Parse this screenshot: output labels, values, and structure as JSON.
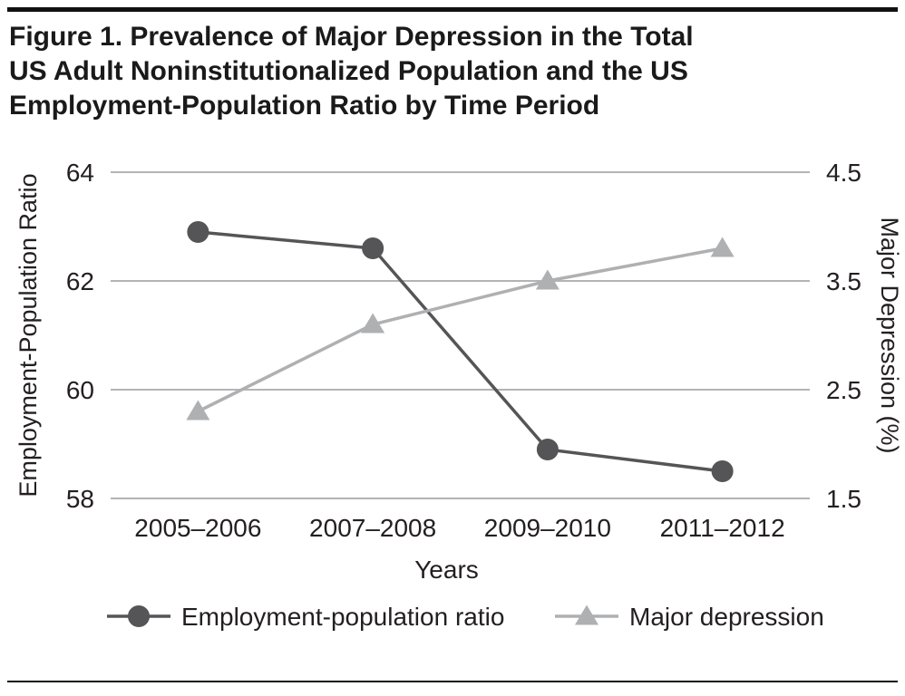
{
  "title": {
    "lines": [
      "Figure 1. Prevalence of Major Depression in the Total",
      "US Adult Noninstitutionalized Population and the US",
      "Employment-Population Ratio by Time Period"
    ]
  },
  "chart_data": {
    "type": "line",
    "categories": [
      "2005–2006",
      "2007–2008",
      "2009–2010",
      "2011–2012"
    ],
    "series": [
      {
        "name": "Employment-population ratio",
        "axis": "left",
        "marker": "circle",
        "color": "#555557",
        "values": [
          62.9,
          62.6,
          58.9,
          58.5
        ]
      },
      {
        "name": "Major depression",
        "axis": "right",
        "marker": "triangle",
        "color": "#aeb0b2",
        "values": [
          2.3,
          3.1,
          3.5,
          3.8
        ]
      }
    ],
    "left_axis": {
      "label": "Employment-Population Ratio",
      "ticks": [
        64,
        62,
        60,
        58
      ],
      "min": 58,
      "max": 64
    },
    "right_axis": {
      "label": "Major Depression (%)",
      "ticks": [
        "4.5",
        "3.5",
        "2.5",
        "1.5"
      ],
      "min": 1.5,
      "max": 4.5
    },
    "xlabel": "Years",
    "grid": true,
    "legend_position": "bottom",
    "colors": {
      "gridline": "#b4b4b4",
      "text": "#231f20"
    }
  }
}
